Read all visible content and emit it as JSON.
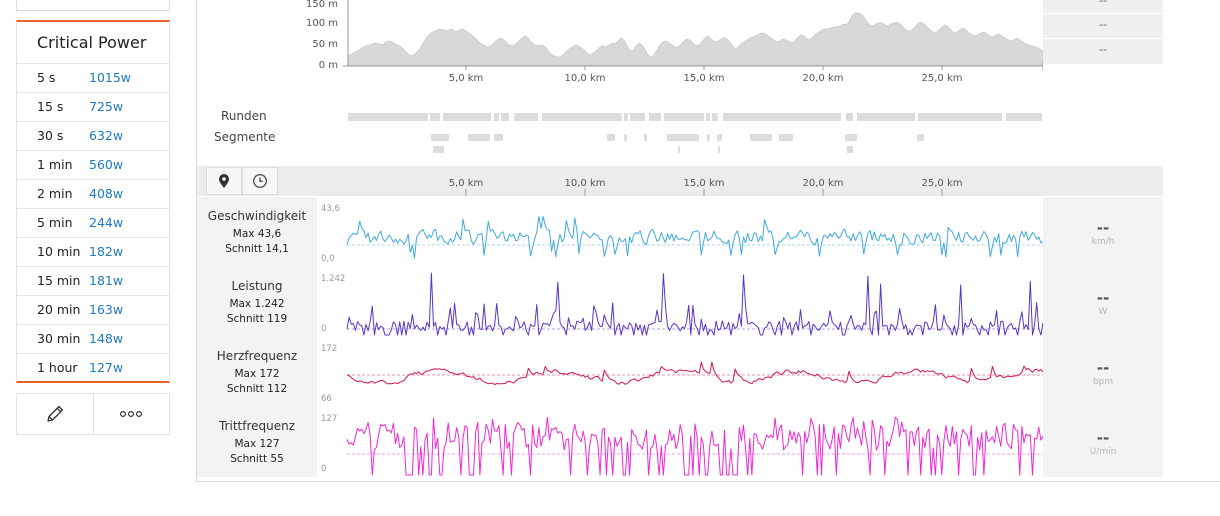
{
  "critical_power": {
    "title": "Critical Power",
    "rows": [
      {
        "duration": "5 s",
        "value": "1015w"
      },
      {
        "duration": "15 s",
        "value": "725w"
      },
      {
        "duration": "30 s",
        "value": "632w"
      },
      {
        "duration": "1 min",
        "value": "560w"
      },
      {
        "duration": "2 min",
        "value": "408w"
      },
      {
        "duration": "5 min",
        "value": "244w"
      },
      {
        "duration": "10 min",
        "value": "182w"
      },
      {
        "duration": "15 min",
        "value": "181w"
      },
      {
        "duration": "20 min",
        "value": "163w"
      },
      {
        "duration": "30 min",
        "value": "148w"
      },
      {
        "duration": "1 hour",
        "value": "127w"
      }
    ],
    "actions": {
      "edit_icon": "pencil-icon",
      "more_icon": "more-dots-icon"
    }
  },
  "elevation": {
    "y_ticks": [
      "150 m",
      "100 m",
      "50 m",
      "0 m"
    ],
    "x_ticks": [
      "5,0 km",
      "10,0 km",
      "15,0 km",
      "20,0 km",
      "25,0 km"
    ],
    "side_values": [
      "--",
      "--",
      "--"
    ]
  },
  "laps": {
    "rounds_label": "Runden",
    "segments_label": "Segmente"
  },
  "toolbar": {
    "location_icon": "map-pin-icon",
    "time_icon": "clock-icon",
    "x_ticks": [
      "5,0 km",
      "10,0 km",
      "15,0 km",
      "20,0 km",
      "25,0 km"
    ]
  },
  "metrics": [
    {
      "name": "Geschwindigkeit",
      "max": "Max 43,6",
      "avg": "Schnitt 14,1",
      "top": "43,6",
      "bottom": "0,0",
      "right_value": "--",
      "unit": "km/h",
      "color": "#41a9dc"
    },
    {
      "name": "Leistung",
      "max": "Max 1.242",
      "avg": "Schnitt 119",
      "top": "1.242",
      "bottom": "0",
      "right_value": "--",
      "unit": "W",
      "color": "#5b34c8"
    },
    {
      "name": "Herzfrequenz",
      "max": "Max 172",
      "avg": "Schnitt 112",
      "top": "172",
      "bottom": "66",
      "right_value": "--",
      "unit": "bpm",
      "color": "#d0174f"
    },
    {
      "name": "Trittfrequenz",
      "max": "Max 127",
      "avg": "Schnitt 55",
      "top": "127",
      "bottom": "0",
      "right_value": "--",
      "unit": "U/min",
      "color": "#f226d6"
    }
  ]
}
